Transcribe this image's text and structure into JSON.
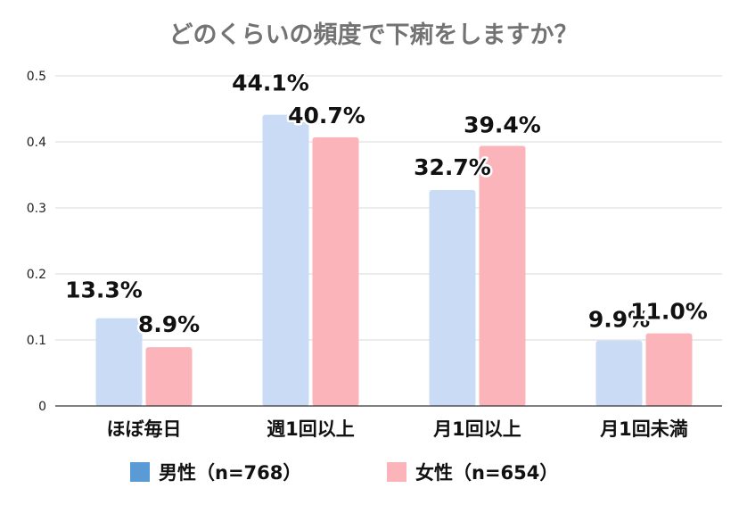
{
  "chart_data": {
    "type": "bar",
    "title": "どのくらいの頻度で下痢をしますか？",
    "categories": [
      "ほぼ毎日",
      "週1回以上",
      "月1回以上",
      "月1回未満"
    ],
    "series": [
      {
        "name": "男性（n=768）",
        "values": [
          0.133,
          0.441,
          0.327,
          0.099
        ],
        "labels": [
          "13.3%",
          "44.1%",
          "32.7%",
          "9.9%"
        ],
        "color": "#c9dbf5",
        "legend_color": "#5b9bd5"
      },
      {
        "name": "女性（n=654）",
        "values": [
          0.089,
          0.407,
          0.394,
          0.11
        ],
        "labels": [
          "8.9%",
          "40.7%",
          "39.4%",
          "11.0%"
        ],
        "color": "#fbb4b9",
        "legend_color": "#fbb4b9"
      }
    ],
    "yticks": [
      "0",
      "0.1",
      "0.2",
      "0.3",
      "0.4",
      "0.5"
    ],
    "ylim": [
      0,
      0.5
    ],
    "grid": true,
    "legend_position": "bottom"
  }
}
